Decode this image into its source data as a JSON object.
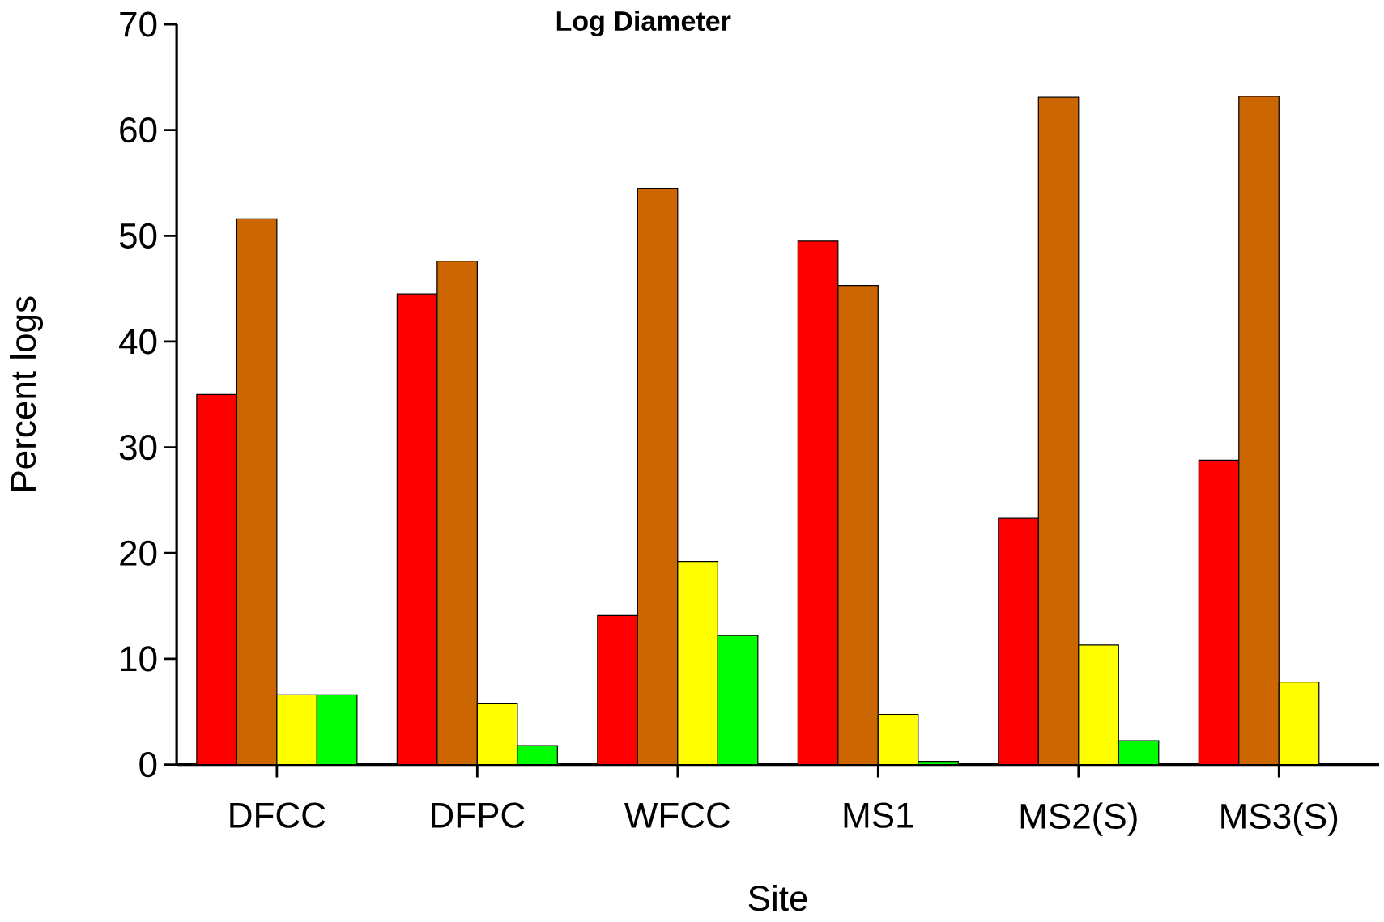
{
  "chart_data": {
    "type": "bar",
    "title": "Log Diameter",
    "xlabel": "Site",
    "ylabel": "Percent logs",
    "categories": [
      "DFCC",
      "DFPC",
      "WFCC",
      "MS1",
      "MS2(S)",
      "MS3(S)"
    ],
    "series": [
      {
        "color": "#ff0000",
        "values": [
          35,
          44.5,
          14.1,
          49.5,
          23.3,
          28.8
        ]
      },
      {
        "color": "#cc6600",
        "values": [
          51.6,
          47.6,
          54.5,
          45.3,
          63.1,
          63.2
        ]
      },
      {
        "color": "#ffff00",
        "values": [
          6.6,
          5.75,
          19.2,
          4.75,
          11.3,
          7.8
        ]
      },
      {
        "color": "#00ff00",
        "values": [
          6.6,
          1.8,
          12.2,
          0.3,
          2.25,
          null
        ]
      }
    ],
    "ylim": [
      0,
      70
    ],
    "yticks": [
      0,
      10,
      20,
      30,
      40,
      50,
      60,
      70
    ]
  }
}
